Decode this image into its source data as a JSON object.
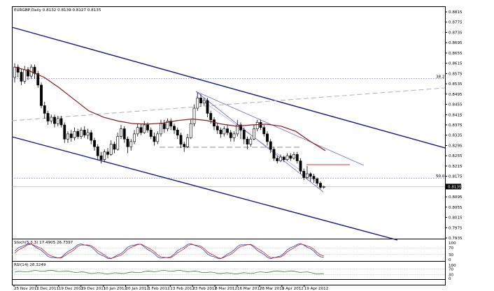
{
  "chart_data": [
    {
      "type": "candlestick",
      "title": "EURGBP,Daily  0.8132 0.8139 0.8127 0.8135",
      "price_axis": {
        "ticks": [
          "0.8815",
          "0.8775",
          "0.8735",
          "0.8695",
          "0.8655",
          "0.8615",
          "0.8575",
          "0.8535",
          "0.8495",
          "0.8455",
          "0.8415",
          "0.8375",
          "0.8335",
          "0.8295",
          "0.8255",
          "0.8215",
          "0.8175",
          "0.8135",
          "0.8095",
          "0.8055",
          "0.8015",
          "0.7975",
          "0.7935"
        ],
        "range": [
          0.7935,
          0.8815
        ]
      },
      "current_price": "0.8135",
      "fib_levels": [
        {
          "label": "38.2",
          "value": 0.8555
        },
        {
          "label": "50.0",
          "value": 0.8168
        }
      ],
      "date_axis": [
        "25 Nov 2011",
        "7 Dec 2011",
        "19 Dec 2011",
        "29 Dec 2011",
        "10 Jan 2012",
        "20 Jan 2012",
        "1 Feb 2012",
        "13 Feb 2012",
        "23 Feb 2012",
        "6 Mar 2012",
        "16 Mar 2012",
        "28 Mar 2012",
        "9 Apr 2012",
        "19 Apr 2012"
      ],
      "moving_average": [
        0.86,
        0.8585,
        0.856,
        0.852,
        0.8475,
        0.843,
        0.8405,
        0.839,
        0.838,
        0.8378,
        0.8382,
        0.8392,
        0.8398,
        0.8392,
        0.8378,
        0.837,
        0.8375,
        0.8378,
        0.837,
        0.835,
        0.831,
        0.8275
      ],
      "candles": [
        [
          0.856,
          0.86,
          0.8615,
          0.854
        ],
        [
          0.86,
          0.858,
          0.861,
          0.856
        ],
        [
          0.858,
          0.8545,
          0.8595,
          0.853
        ],
        [
          0.8545,
          0.859,
          0.8605,
          0.8535
        ],
        [
          0.859,
          0.8565,
          0.86,
          0.855
        ],
        [
          0.8565,
          0.86,
          0.861,
          0.8555
        ],
        [
          0.86,
          0.8575,
          0.861,
          0.8555
        ],
        [
          0.8575,
          0.853,
          0.8585,
          0.852
        ],
        [
          0.853,
          0.845,
          0.854,
          0.844
        ],
        [
          0.845,
          0.842,
          0.8465,
          0.84
        ],
        [
          0.842,
          0.839,
          0.843,
          0.8375
        ],
        [
          0.839,
          0.8405,
          0.8415,
          0.838
        ],
        [
          0.8405,
          0.838,
          0.8415,
          0.8365
        ],
        [
          0.838,
          0.84,
          0.841,
          0.837
        ],
        [
          0.84,
          0.8375,
          0.841,
          0.8365
        ],
        [
          0.8375,
          0.832,
          0.8385,
          0.8305
        ],
        [
          0.832,
          0.834,
          0.835,
          0.8305
        ],
        [
          0.834,
          0.8325,
          0.8355,
          0.831
        ],
        [
          0.8325,
          0.835,
          0.8365,
          0.8315
        ],
        [
          0.835,
          0.833,
          0.836,
          0.832
        ],
        [
          0.833,
          0.8355,
          0.8365,
          0.832
        ],
        [
          0.8355,
          0.8335,
          0.837,
          0.8325
        ],
        [
          0.8335,
          0.8345,
          0.836,
          0.832
        ],
        [
          0.8345,
          0.8315,
          0.8355,
          0.83
        ],
        [
          0.8315,
          0.829,
          0.8325,
          0.8275
        ],
        [
          0.829,
          0.8255,
          0.83,
          0.824
        ],
        [
          0.8255,
          0.824,
          0.827,
          0.8225
        ],
        [
          0.824,
          0.827,
          0.828,
          0.823
        ],
        [
          0.827,
          0.826,
          0.8285,
          0.8245
        ],
        [
          0.826,
          0.83,
          0.8315,
          0.8255
        ],
        [
          0.83,
          0.828,
          0.831,
          0.8265
        ],
        [
          0.828,
          0.833,
          0.8345,
          0.8275
        ],
        [
          0.833,
          0.836,
          0.8375,
          0.832
        ],
        [
          0.836,
          0.832,
          0.837,
          0.8305
        ],
        [
          0.832,
          0.829,
          0.833,
          0.8265
        ],
        [
          0.829,
          0.831,
          0.832,
          0.8275
        ],
        [
          0.831,
          0.834,
          0.8355,
          0.83
        ],
        [
          0.834,
          0.8365,
          0.838,
          0.833
        ],
        [
          0.8365,
          0.8345,
          0.838,
          0.8335
        ],
        [
          0.8345,
          0.8375,
          0.839,
          0.834
        ],
        [
          0.8375,
          0.8355,
          0.8385,
          0.8345
        ],
        [
          0.8355,
          0.833,
          0.8365,
          0.832
        ],
        [
          0.833,
          0.831,
          0.8345,
          0.8295
        ],
        [
          0.831,
          0.834,
          0.835,
          0.83
        ],
        [
          0.834,
          0.838,
          0.8395,
          0.833
        ],
        [
          0.838,
          0.836,
          0.8395,
          0.8345
        ],
        [
          0.836,
          0.839,
          0.84,
          0.835
        ],
        [
          0.839,
          0.837,
          0.84,
          0.8355
        ],
        [
          0.837,
          0.8355,
          0.838,
          0.834
        ],
        [
          0.8355,
          0.8335,
          0.8365,
          0.832
        ],
        [
          0.8335,
          0.83,
          0.8345,
          0.8285
        ],
        [
          0.83,
          0.829,
          0.831,
          0.827
        ],
        [
          0.829,
          0.8325,
          0.834,
          0.8285
        ],
        [
          0.8325,
          0.838,
          0.8395,
          0.832
        ],
        [
          0.838,
          0.844,
          0.8455,
          0.837
        ],
        [
          0.844,
          0.848,
          0.85,
          0.843
        ],
        [
          0.848,
          0.846,
          0.8495,
          0.8445
        ],
        [
          0.846,
          0.847,
          0.848,
          0.845
        ],
        [
          0.847,
          0.842,
          0.848,
          0.8405
        ],
        [
          0.842,
          0.8395,
          0.843,
          0.838
        ],
        [
          0.8395,
          0.837,
          0.8405,
          0.8355
        ],
        [
          0.837,
          0.8355,
          0.838,
          0.834
        ],
        [
          0.8355,
          0.834,
          0.8365,
          0.8325
        ],
        [
          0.834,
          0.836,
          0.837,
          0.833
        ],
        [
          0.836,
          0.8345,
          0.8375,
          0.8335
        ],
        [
          0.8345,
          0.8325,
          0.8355,
          0.831
        ],
        [
          0.8325,
          0.834,
          0.835,
          0.831
        ],
        [
          0.834,
          0.8375,
          0.8395,
          0.833
        ],
        [
          0.8375,
          0.8355,
          0.8385,
          0.832
        ],
        [
          0.8355,
          0.832,
          0.8365,
          0.83
        ],
        [
          0.832,
          0.83,
          0.833,
          0.828
        ],
        [
          0.83,
          0.832,
          0.833,
          0.829
        ],
        [
          0.832,
          0.836,
          0.8375,
          0.8315
        ],
        [
          0.836,
          0.8385,
          0.8395,
          0.835
        ],
        [
          0.8385,
          0.8365,
          0.8395,
          0.8355
        ],
        [
          0.8365,
          0.834,
          0.8375,
          0.833
        ],
        [
          0.834,
          0.831,
          0.835,
          0.8295
        ],
        [
          0.831,
          0.828,
          0.832,
          0.8265
        ],
        [
          0.828,
          0.8245,
          0.829,
          0.8235
        ],
        [
          0.8245,
          0.8235,
          0.8255,
          0.8225
        ],
        [
          0.8235,
          0.825,
          0.826,
          0.823
        ],
        [
          0.825,
          0.824,
          0.8255,
          0.823
        ],
        [
          0.824,
          0.8255,
          0.8265,
          0.8235
        ],
        [
          0.8255,
          0.8245,
          0.8265,
          0.8235
        ],
        [
          0.8245,
          0.826,
          0.827,
          0.824
        ],
        [
          0.826,
          0.8235,
          0.827,
          0.8225
        ],
        [
          0.8235,
          0.8195,
          0.8245,
          0.8185
        ],
        [
          0.8195,
          0.817,
          0.8205,
          0.816
        ],
        [
          0.817,
          0.8185,
          0.8215,
          0.8165
        ],
        [
          0.8185,
          0.8175,
          0.819,
          0.8155
        ],
        [
          0.8175,
          0.8165,
          0.8185,
          0.815
        ],
        [
          0.8165,
          0.8148,
          0.817,
          0.8138
        ],
        [
          0.8148,
          0.8132,
          0.8155,
          0.8125
        ],
        [
          0.8132,
          0.8135,
          0.8139,
          0.8127
        ]
      ],
      "trend_lines": "regression channel + support/resistance"
    },
    {
      "type": "line",
      "title": "Stoch(5,3,3)  17.4905 26.7397",
      "yticks": [
        "100",
        "70",
        "30",
        "0"
      ],
      "series": [
        {
          "color": "#1a3fc4"
        },
        {
          "color": "#d02020"
        }
      ]
    },
    {
      "type": "line",
      "title": "RSI(14)  28.3249",
      "yticks": [
        "100",
        "70",
        "30",
        "0"
      ],
      "series": [
        {
          "color": "#2e8b2e"
        }
      ]
    }
  ]
}
